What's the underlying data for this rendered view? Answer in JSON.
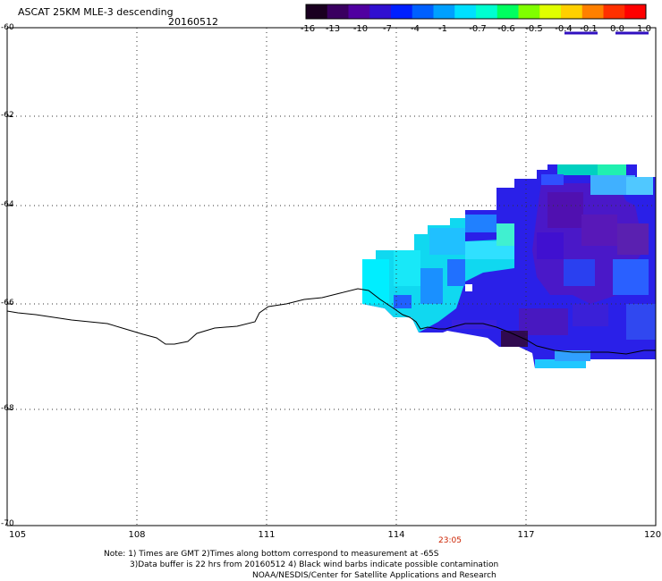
{
  "header": {
    "title": "ASCAT 25KM MLE-3 descending",
    "date": "20160512"
  },
  "colorbar": {
    "labels": [
      "-16",
      "-13",
      "-10",
      "-7",
      "-4",
      "-1",
      "-0.7",
      "-0.6",
      "-0.5",
      "-0.4",
      "-0.1",
      "0.0",
      "1.0"
    ],
    "colors": [
      "#1a0020",
      "#3a0060",
      "#5000a0",
      "#3010d0",
      "#0020ff",
      "#0060ff",
      "#00a0ff",
      "#00e0ff",
      "#00ffd0",
      "#00ff60",
      "#80ff00",
      "#e0ff00",
      "#ffd000",
      "#ff8000",
      "#ff3000",
      "#ff0000"
    ]
  },
  "map": {
    "latitude_labels": [
      "-60",
      "-62",
      "-64",
      "-66",
      "-68",
      "-70"
    ],
    "longitude_labels": [
      "105",
      "108",
      "111",
      "114",
      "117",
      "120"
    ],
    "time_label": "23:05"
  },
  "notes": {
    "line1": "Note: 1) Times are GMT 2)Times along bottom correspond to measurement at -65S",
    "line2": "3)Data buffer is 22 hrs from 20160512 4) Black wind barbs indicate possible contamination",
    "line3": "NOAA/NESDIS/Center for Satellite Applications and Research"
  }
}
